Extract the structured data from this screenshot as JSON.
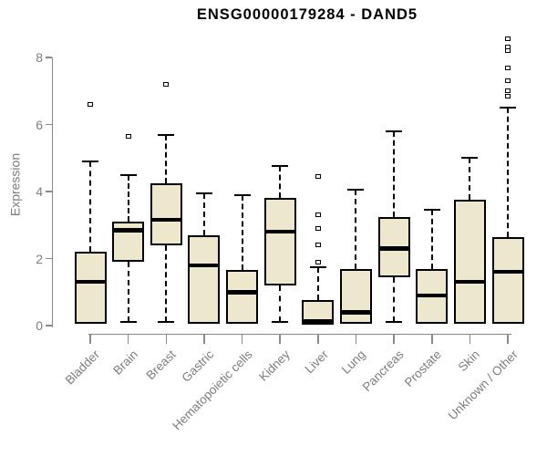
{
  "page": {
    "background": "#ffffff"
  },
  "chart_data": {
    "type": "boxplot",
    "title": "ENSG00000179284 - DAND5",
    "ylabel": "Expression",
    "xlabel": "",
    "ylim": [
      0,
      8.6
    ],
    "yticks": [
      0,
      2,
      4,
      6,
      8
    ],
    "grid": false,
    "legend": "none",
    "categories": [
      "Bladder",
      "Brain",
      "Breast",
      "Gastric",
      "Hematopoietic cells",
      "Kidney",
      "Liver",
      "Lung",
      "Pancreas",
      "Prostate",
      "Skin",
      "Unknown / Other"
    ],
    "series": [
      {
        "name": "Bladder",
        "low": 0.05,
        "q1": 0.05,
        "median": 1.3,
        "q3": 2.2,
        "high": 4.9,
        "outliers": [
          6.6
        ]
      },
      {
        "name": "Brain",
        "low": 0.1,
        "q1": 1.9,
        "median": 2.85,
        "q3": 3.1,
        "high": 4.5,
        "outliers": [
          5.65
        ]
      },
      {
        "name": "Breast",
        "low": 0.1,
        "q1": 2.4,
        "median": 3.15,
        "q3": 4.25,
        "high": 5.7,
        "outliers": [
          7.2
        ]
      },
      {
        "name": "Gastric",
        "low": 0.05,
        "q1": 0.05,
        "median": 1.8,
        "q3": 2.7,
        "high": 3.95,
        "outliers": []
      },
      {
        "name": "Hematopoietic cells",
        "low": 0.05,
        "q1": 0.05,
        "median": 1.0,
        "q3": 1.65,
        "high": 3.9,
        "outliers": []
      },
      {
        "name": "Kidney",
        "low": 0.1,
        "q1": 1.2,
        "median": 2.8,
        "q3": 3.8,
        "high": 4.75,
        "outliers": []
      },
      {
        "name": "Liver",
        "low": 0.02,
        "q1": 0.02,
        "median": 0.12,
        "q3": 0.75,
        "high": 1.75,
        "outliers": [
          1.9,
          2.4,
          2.9,
          3.3,
          4.45
        ]
      },
      {
        "name": "Lung",
        "low": 0.05,
        "q1": 0.05,
        "median": 0.4,
        "q3": 1.7,
        "high": 4.05,
        "outliers": []
      },
      {
        "name": "Pancreas",
        "low": 0.1,
        "q1": 1.45,
        "median": 2.3,
        "q3": 3.25,
        "high": 5.8,
        "outliers": []
      },
      {
        "name": "Prostate",
        "low": 0.05,
        "q1": 0.05,
        "median": 0.9,
        "q3": 1.7,
        "high": 3.45,
        "outliers": []
      },
      {
        "name": "Skin",
        "low": 0.05,
        "q1": 0.05,
        "median": 1.3,
        "q3": 3.75,
        "high": 5.0,
        "outliers": []
      },
      {
        "name": "Unknown / Other",
        "low": 0.05,
        "q1": 0.05,
        "median": 1.6,
        "q3": 2.65,
        "high": 6.5,
        "outliers": [
          6.85,
          7.0,
          7.3,
          7.7,
          8.2,
          8.3,
          8.55
        ]
      }
    ],
    "colors": {
      "box_fill": "#EDE8CD",
      "box_border": "#000000",
      "median": "#000000",
      "whisker": "#000000",
      "axis": "#898989",
      "axis_text": "#7d7d7d",
      "title_text": "#000000"
    }
  }
}
